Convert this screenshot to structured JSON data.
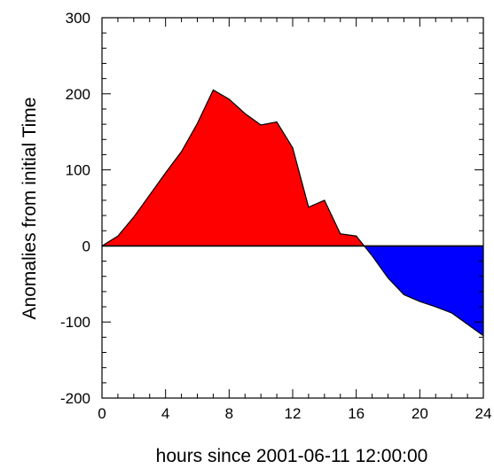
{
  "chart_data": {
    "type": "area",
    "title": "",
    "xlabel": "hours since 2001-06-11 12:00:00",
    "ylabel": "Anomalies from initial Time",
    "xlim": [
      0,
      24
    ],
    "ylim": [
      -200,
      300
    ],
    "x_ticks": [
      0,
      4,
      8,
      12,
      16,
      20,
      24
    ],
    "x_tick_labels": [
      "0",
      "4",
      "8",
      "12",
      "16",
      "20",
      "24"
    ],
    "y_ticks": [
      -200,
      -100,
      0,
      100,
      200,
      300
    ],
    "y_tick_labels": [
      "-200",
      "-100",
      "0",
      "100",
      "200",
      "300"
    ],
    "grid": false,
    "legend": "none",
    "baseline": 0,
    "colors": {
      "positive_fill": "#ff0000",
      "negative_fill": "#0000ff",
      "line": "#000000"
    },
    "series": [
      {
        "x": [
          0,
          1,
          2,
          3,
          4,
          5,
          6,
          7,
          8,
          9,
          10,
          11,
          12,
          13,
          14,
          15,
          16,
          17,
          18,
          19,
          20,
          21,
          22,
          23,
          24
        ],
        "values": [
          0,
          13,
          38,
          67,
          96,
          124,
          161,
          205,
          193,
          174,
          159,
          163,
          129,
          51,
          60,
          16,
          13,
          -13,
          -42,
          -64,
          -73,
          -80,
          -88,
          -103,
          -118
        ]
      }
    ]
  }
}
